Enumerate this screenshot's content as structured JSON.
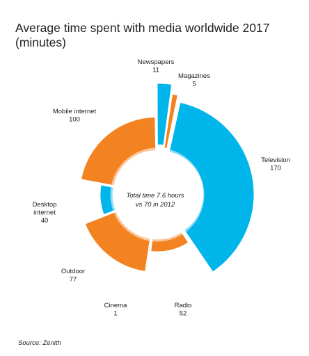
{
  "title": "Average time spent with media worldwide 2017 (minutes)",
  "source": "Source: Zenith",
  "center_text": [
    "Total time 7.6 hours",
    "vs 70 in 2012"
  ],
  "colors": {
    "digital": "#00b5ea",
    "traditional": "#f38221"
  },
  "chart_data": {
    "type": "pie",
    "variant": "exploded-donut",
    "title": "Average time spent with media worldwide 2017 (minutes)",
    "categories": [
      "Television",
      "Radio",
      "Cinema",
      "Outdoor",
      "Desktop internet",
      "Mobile internet",
      "Newspapers",
      "Magazines"
    ],
    "values": [
      170,
      52,
      1,
      77,
      40,
      100,
      11,
      5
    ],
    "category_colors": [
      "#00b5ea",
      "#f38221",
      "#00b5ea",
      "#f38221",
      "#00b5ea",
      "#f38221",
      "#00b5ea",
      "#f38221"
    ],
    "labels": [
      [
        "Television",
        "170"
      ],
      [
        "Radio",
        "52"
      ],
      [
        "Cinema",
        "1"
      ],
      [
        "Outdoor",
        "77"
      ],
      [
        "Desktop",
        "internet",
        "40"
      ],
      [
        "Mobile internet",
        "100"
      ],
      [
        "Newspapers",
        "11"
      ],
      [
        "Magazines",
        "5"
      ]
    ]
  }
}
